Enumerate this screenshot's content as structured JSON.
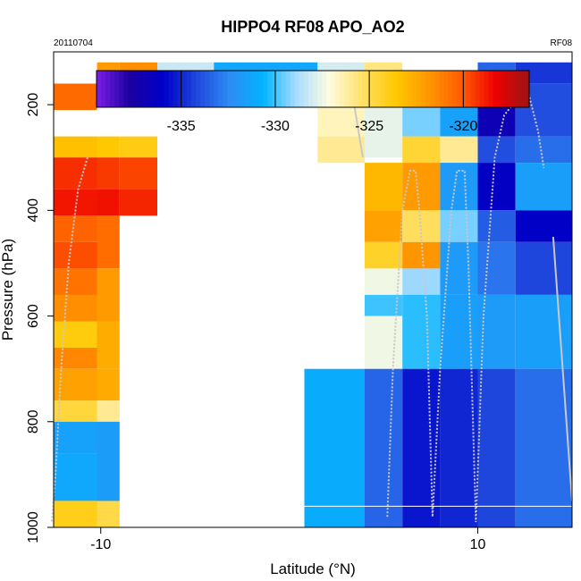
{
  "chart_data": {
    "type": "heatmap",
    "title": "HIPPO4 RF08 APO_AO2",
    "subtitle_left": "20110704",
    "subtitle_right": "RF08",
    "xlabel": "Latitude (°N)",
    "ylabel": "Pressure (hPa)",
    "xlim": [
      -12.5,
      15
    ],
    "ylim": [
      1000,
      100
    ],
    "xticks": [
      -10,
      10
    ],
    "xtick_labels": [
      "-10",
      "10"
    ],
    "yticks": [
      200,
      400,
      600,
      800,
      1000
    ],
    "ytick_labels": [
      "200",
      "400",
      "600",
      "800",
      "1000"
    ],
    "colorbar": {
      "range": [
        -339.5,
        -316.5
      ],
      "ticks": [
        -335,
        -330,
        -325,
        -320
      ],
      "tick_labels": [
        "-335",
        "-330",
        "-325",
        "-320"
      ],
      "colors": [
        "#7a1ee8",
        "#1c00a0",
        "#0000c8",
        "#1f46dc",
        "#2f8cf5",
        "#00b4ff",
        "#a8dcff",
        "#fffce0",
        "#ffe066",
        "#ffc800",
        "#ff9600",
        "#ff5a00",
        "#ee0000",
        "#9a1515"
      ]
    },
    "columns": [
      {
        "x0": -12.5,
        "x1": -10.2,
        "cells": [
          {
            "p0": 160,
            "p1": 210,
            "v": -320.5
          },
          {
            "p0": 260,
            "p1": 300,
            "v": -323.3
          },
          {
            "p0": 300,
            "p1": 360,
            "v": -319.2
          },
          {
            "p0": 360,
            "p1": 410,
            "v": -318.7
          },
          {
            "p0": 410,
            "p1": 460,
            "v": -320.3
          },
          {
            "p0": 460,
            "p1": 510,
            "v": -319.8
          },
          {
            "p0": 510,
            "p1": 560,
            "v": -320.8
          },
          {
            "p0": 560,
            "p1": 610,
            "v": -321.6
          },
          {
            "p0": 610,
            "p1": 660,
            "v": -323.8
          },
          {
            "p0": 660,
            "p1": 700,
            "v": -321.4
          },
          {
            "p0": 700,
            "p1": 760,
            "v": -322.2
          },
          {
            "p0": 760,
            "p1": 800,
            "v": -324.6
          },
          {
            "p0": 800,
            "p1": 860,
            "v": -331.5
          },
          {
            "p0": 860,
            "p1": 950,
            "v": -331.2
          },
          {
            "p0": 950,
            "p1": 1000,
            "v": -324.0
          }
        ]
      },
      {
        "x0": -10.2,
        "x1": -9.0,
        "cells": [
          {
            "p0": 120,
            "p1": 160,
            "v": -322.0
          },
          {
            "p0": 260,
            "p1": 300,
            "v": -323.6
          },
          {
            "p0": 300,
            "p1": 360,
            "v": -319.4
          },
          {
            "p0": 360,
            "p1": 410,
            "v": -318.6
          },
          {
            "p0": 410,
            "p1": 510,
            "v": -320.6
          },
          {
            "p0": 510,
            "p1": 610,
            "v": -322.0
          },
          {
            "p0": 610,
            "p1": 700,
            "v": -322.6
          },
          {
            "p0": 700,
            "p1": 760,
            "v": -322.5
          },
          {
            "p0": 760,
            "p1": 800,
            "v": -326.0
          },
          {
            "p0": 800,
            "p1": 950,
            "v": -331.7
          },
          {
            "p0": 950,
            "p1": 1000,
            "v": -324.8
          }
        ]
      },
      {
        "x0": -9.0,
        "x1": -7.0,
        "cells": [
          {
            "p0": 120,
            "p1": 160,
            "v": -321.6
          },
          {
            "p0": 260,
            "p1": 300,
            "v": -323.9
          },
          {
            "p0": 300,
            "p1": 360,
            "v": -319.6
          },
          {
            "p0": 360,
            "p1": 410,
            "v": -319.0
          }
        ]
      },
      {
        "x0": -7.0,
        "x1": -4.0,
        "cells": [
          {
            "p0": 120,
            "p1": 180,
            "v": -328.2
          }
        ]
      },
      {
        "x0": -4.0,
        "x1": 1.5,
        "cells": [
          {
            "p0": 120,
            "p1": 180,
            "v": -331.2
          }
        ]
      },
      {
        "x0": 1.5,
        "x1": 4.0,
        "cells": [
          {
            "p0": 120,
            "p1": 160,
            "v": -328.0
          },
          {
            "p0": 200,
            "p1": 260,
            "v": -326.6
          },
          {
            "p0": 260,
            "p1": 310,
            "v": -326.0
          }
        ]
      },
      {
        "x0": 0.8,
        "x1": 4.0,
        "cells": [
          {
            "p0": 700,
            "p1": 1000,
            "v": -331.0
          }
        ]
      },
      {
        "x0": 4.0,
        "x1": 6.0,
        "cells": [
          {
            "p0": 120,
            "p1": 160,
            "v": -325.7
          },
          {
            "p0": 160,
            "p1": 300,
            "v": -327.6
          },
          {
            "p0": 310,
            "p1": 400,
            "v": -323.0
          },
          {
            "p0": 400,
            "p1": 460,
            "v": -322.2
          },
          {
            "p0": 460,
            "p1": 510,
            "v": -324.3
          },
          {
            "p0": 510,
            "p1": 560,
            "v": -327.4
          },
          {
            "p0": 560,
            "p1": 600,
            "v": -330.0
          },
          {
            "p0": 600,
            "p1": 700,
            "v": -327.4
          },
          {
            "p0": 700,
            "p1": 1000,
            "v": -333.4
          }
        ]
      },
      {
        "x0": 6.0,
        "x1": 8.0,
        "cells": [
          {
            "p0": 160,
            "p1": 260,
            "v": -329.4
          },
          {
            "p0": 260,
            "p1": 310,
            "v": -324.5
          },
          {
            "p0": 310,
            "p1": 400,
            "v": -322.0
          },
          {
            "p0": 400,
            "p1": 460,
            "v": -325.2
          },
          {
            "p0": 460,
            "p1": 510,
            "v": -321.8
          },
          {
            "p0": 510,
            "p1": 560,
            "v": -329.0
          },
          {
            "p0": 560,
            "p1": 700,
            "v": -330.2
          },
          {
            "p0": 700,
            "p1": 1000,
            "v": -335.4
          }
        ]
      },
      {
        "x0": 8.0,
        "x1": 10.0,
        "cells": [
          {
            "p0": 160,
            "p1": 260,
            "v": -331.5
          },
          {
            "p0": 260,
            "p1": 310,
            "v": -326.0
          },
          {
            "p0": 310,
            "p1": 400,
            "v": -331.8
          },
          {
            "p0": 400,
            "p1": 460,
            "v": -329.4
          },
          {
            "p0": 460,
            "p1": 560,
            "v": -331.8
          },
          {
            "p0": 560,
            "p1": 700,
            "v": -331.6
          },
          {
            "p0": 700,
            "p1": 1000,
            "v": -335.0
          }
        ]
      },
      {
        "x0": 10.0,
        "x1": 12.0,
        "cells": [
          {
            "p0": 120,
            "p1": 160,
            "v": -333.4
          },
          {
            "p0": 160,
            "p1": 260,
            "v": -336.8
          },
          {
            "p0": 260,
            "p1": 310,
            "v": -334.0
          },
          {
            "p0": 310,
            "p1": 400,
            "v": -336.2
          },
          {
            "p0": 400,
            "p1": 460,
            "v": -333.6
          },
          {
            "p0": 460,
            "p1": 560,
            "v": -333.0
          },
          {
            "p0": 560,
            "p1": 700,
            "v": -331.8
          },
          {
            "p0": 700,
            "p1": 1000,
            "v": -334.2
          }
        ]
      },
      {
        "x0": 12.0,
        "x1": 15.0,
        "cells": [
          {
            "p0": 120,
            "p1": 160,
            "v": -334.6
          },
          {
            "p0": 160,
            "p1": 260,
            "v": -334.0
          },
          {
            "p0": 260,
            "p1": 310,
            "v": -333.2
          },
          {
            "p0": 310,
            "p1": 400,
            "v": -331.6
          },
          {
            "p0": 400,
            "p1": 460,
            "v": -336.0
          },
          {
            "p0": 460,
            "p1": 560,
            "v": -334.2
          },
          {
            "p0": 560,
            "p1": 700,
            "v": -331.6
          },
          {
            "p0": 700,
            "p1": 1000,
            "v": -333.2
          }
        ]
      }
    ],
    "flight_track": [
      {
        "x": -10.7,
        "y": 300
      },
      {
        "x": -11.2,
        "y": 360
      },
      {
        "x": -11.7,
        "y": 500
      },
      {
        "x": -12.1,
        "y": 700
      },
      {
        "x": -12.4,
        "y": 900
      },
      {
        "x": -12.6,
        "y": 990
      }
    ],
    "flight_track_cruise": [
      {
        "x": -9.3,
        "y": 190
      },
      {
        "x": -5.0,
        "y": 190
      },
      {
        "x": -3.5,
        "y": 190
      },
      {
        "x": 0.0,
        "y": 190
      },
      {
        "x": 3.4,
        "y": 190
      },
      {
        "x": 3.9,
        "y": 300
      }
    ],
    "flight_track_profiles": [
      {
        "x": 5.2,
        "y": 980
      },
      {
        "x": 5.5,
        "y": 700
      },
      {
        "x": 6.0,
        "y": 400
      },
      {
        "x": 6.4,
        "y": 325
      },
      {
        "x": 6.7,
        "y": 325
      },
      {
        "x": 6.9,
        "y": 400
      },
      {
        "x": 7.3,
        "y": 600
      },
      {
        "x": 7.6,
        "y": 980
      },
      {
        "x": 8.0,
        "y": 700
      },
      {
        "x": 8.6,
        "y": 400
      },
      {
        "x": 8.9,
        "y": 325
      },
      {
        "x": 9.3,
        "y": 325
      },
      {
        "x": 9.5,
        "y": 500
      },
      {
        "x": 9.9,
        "y": 990
      },
      {
        "x": 10.3,
        "y": 600
      },
      {
        "x": 10.9,
        "y": 300
      },
      {
        "x": 11.4,
        "y": 220
      },
      {
        "x": 12.3,
        "y": 180
      },
      {
        "x": 12.7,
        "y": 180
      },
      {
        "x": 13.2,
        "y": 250
      },
      {
        "x": 13.5,
        "y": 320
      }
    ],
    "flight_track_tail": [
      {
        "x": 14.0,
        "y": 450
      },
      {
        "x": 14.5,
        "y": 700
      },
      {
        "x": 15.0,
        "y": 950
      }
    ]
  }
}
